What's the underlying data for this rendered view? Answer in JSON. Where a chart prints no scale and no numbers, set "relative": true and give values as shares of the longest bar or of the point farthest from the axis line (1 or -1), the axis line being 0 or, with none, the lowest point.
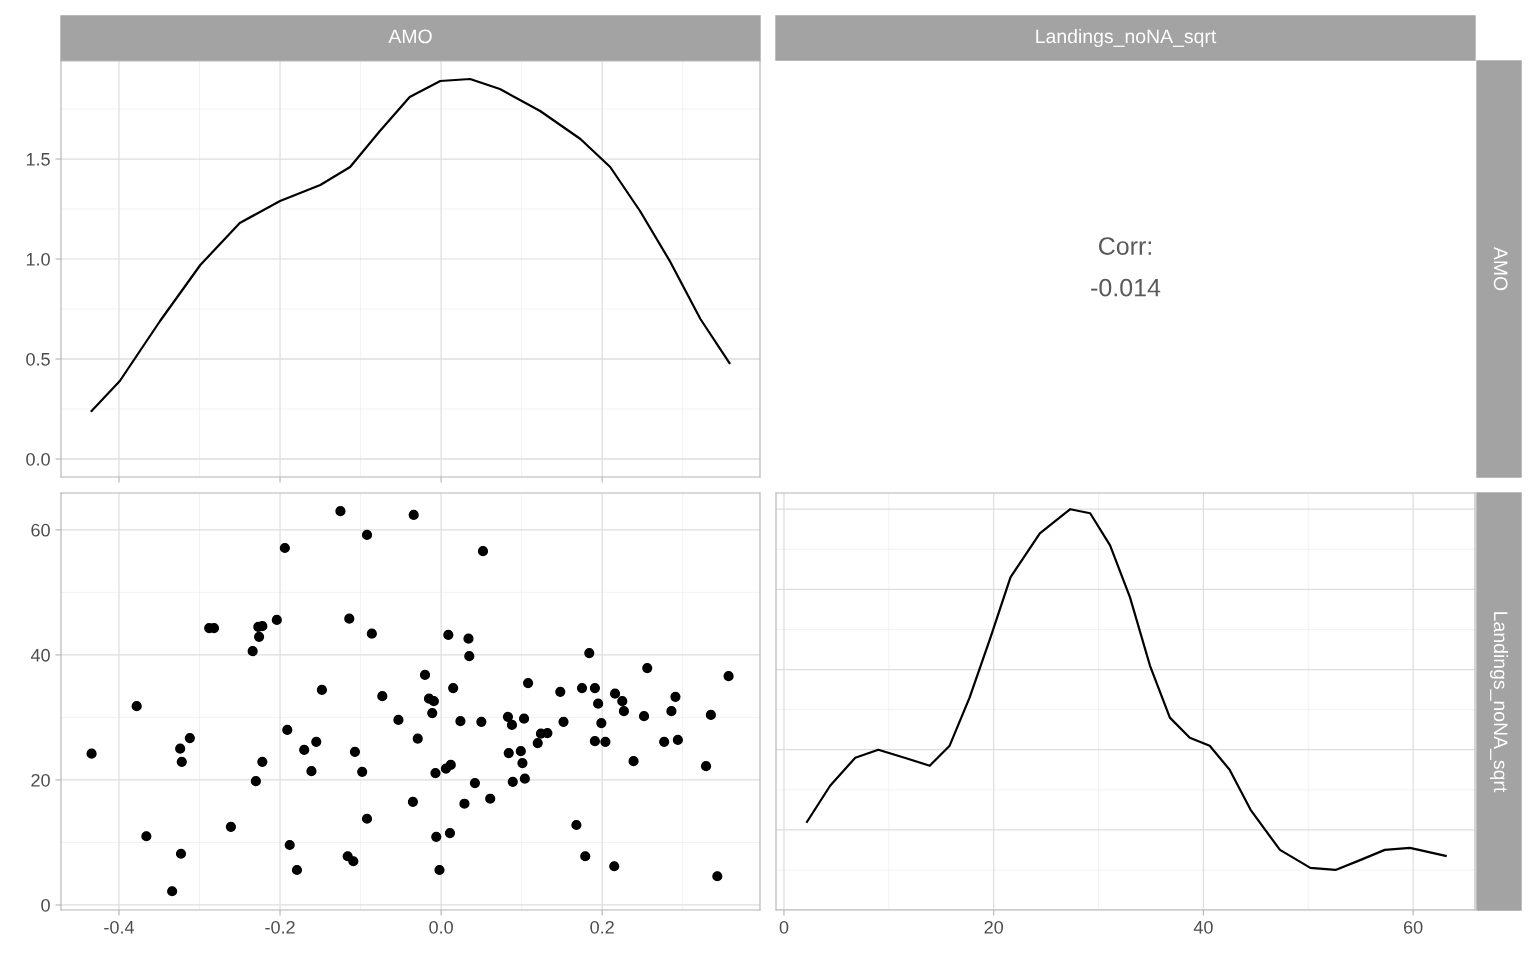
{
  "chart_data": [
    {
      "type": "line",
      "title": "AMO",
      "xlim": [
        -0.472,
        0.396
      ],
      "xticks": [
        -0.4,
        -0.2,
        0,
        0.2
      ],
      "ylim": [
        -0.09,
        1.99
      ],
      "yticks": [
        {
          "value": 0,
          "label": "0.0"
        },
        0.5,
        {
          "value": 1,
          "label": "1.0"
        },
        1.5
      ],
      "tick_labels": "y",
      "grid": true,
      "series": [
        {
          "color": "#000000",
          "x": [
            -0.434,
            -0.399,
            -0.349,
            -0.299,
            -0.25,
            -0.2,
            -0.15,
            -0.113,
            -0.076,
            -0.039,
            -0.001,
            0.036,
            0.073,
            0.123,
            0.173,
            0.21,
            0.247,
            0.284,
            0.322,
            0.358
          ],
          "values": [
            0.24,
            0.39,
            0.69,
            0.97,
            1.18,
            1.29,
            1.37,
            1.46,
            1.64,
            1.81,
            1.89,
            1.9,
            1.85,
            1.74,
            1.6,
            1.46,
            1.24,
            0.99,
            0.7,
            0.48
          ]
        }
      ]
    },
    {
      "type": "other",
      "title": "Landings_noNA_sqrt",
      "y2label": "AMO",
      "annotations": [
        "Corr:",
        "-0.014"
      ]
    },
    {
      "type": "scatter",
      "xlim": [
        -0.472,
        0.396
      ],
      "xticks": [
        -0.4,
        -0.2,
        {
          "value": 0,
          "label": "0.0"
        },
        0.2
      ],
      "ylim": [
        -0.8,
        65.9
      ],
      "yticks": [
        0,
        20,
        40,
        60
      ],
      "grid": true,
      "marker": "circle",
      "series": [
        {
          "color": "#000000",
          "x": [
            -0.434,
            -0.378,
            -0.366,
            -0.334,
            -0.324,
            -0.323,
            -0.322,
            -0.312,
            -0.288,
            -0.282,
            -0.261,
            -0.234,
            -0.23,
            -0.227,
            -0.226,
            -0.222,
            -0.222,
            -0.204,
            -0.194,
            -0.191,
            -0.188,
            -0.179,
            -0.17,
            -0.161,
            -0.155,
            -0.148,
            -0.125,
            -0.116,
            -0.114,
            -0.109,
            -0.107,
            -0.098,
            -0.092,
            -0.092,
            -0.086,
            -0.073,
            -0.053,
            -0.035,
            -0.034,
            -0.029,
            -0.02,
            -0.015,
            -0.011,
            -0.009,
            -0.007,
            -0.006,
            -0.002,
            0.006,
            0.009,
            0.011,
            0.012,
            0.015,
            0.024,
            0.029,
            0.034,
            0.035,
            0.042,
            0.05,
            0.052,
            0.061,
            0.083,
            0.084,
            0.088,
            0.089,
            0.099,
            0.101,
            0.103,
            0.104,
            0.108,
            0.12,
            0.124,
            0.132,
            0.148,
            0.152,
            0.168,
            0.175,
            0.179,
            0.184,
            0.191,
            0.191,
            0.195,
            0.199,
            0.204,
            0.215,
            0.216,
            0.225,
            0.227,
            0.239,
            0.252,
            0.256,
            0.277,
            0.286,
            0.291,
            0.294,
            0.329,
            0.335,
            0.343,
            0.357
          ],
          "values": [
            24.2,
            31.8,
            11.0,
            2.2,
            25.0,
            8.2,
            22.9,
            26.7,
            44.3,
            44.3,
            12.5,
            40.6,
            19.8,
            44.5,
            42.9,
            44.6,
            22.9,
            45.6,
            57.1,
            28.0,
            9.6,
            5.6,
            24.8,
            21.4,
            26.1,
            34.4,
            63.0,
            7.8,
            45.8,
            7.0,
            24.5,
            21.3,
            13.8,
            59.2,
            43.4,
            33.4,
            29.6,
            16.5,
            62.4,
            26.6,
            36.8,
            33.0,
            30.7,
            32.6,
            21.1,
            10.9,
            5.6,
            21.8,
            43.2,
            11.5,
            22.4,
            34.7,
            29.4,
            16.2,
            42.6,
            39.8,
            19.5,
            29.3,
            56.6,
            17.0,
            30.1,
            24.3,
            28.8,
            19.7,
            24.6,
            22.7,
            29.8,
            20.2,
            35.5,
            25.9,
            27.4,
            27.5,
            34.1,
            29.3,
            12.8,
            34.7,
            7.8,
            40.3,
            34.7,
            26.2,
            32.2,
            29.1,
            26.1,
            6.2,
            33.8,
            32.6,
            31.0,
            23.0,
            30.2,
            37.9,
            26.1,
            31.0,
            33.3,
            26.4,
            22.2,
            30.4,
            4.6,
            36.6
          ]
        }
      ]
    },
    {
      "type": "line",
      "y2label": "Landings_noNA_sqrt",
      "relative": true,
      "xlim": [
        -0.76,
        65.9
      ],
      "xticks": [
        0,
        20,
        40,
        60
      ],
      "tick_labels": "x",
      "grid": true,
      "series": [
        {
          "color": "#000000",
          "x": [
            2.2,
            4.4,
            6.8,
            9.0,
            11.5,
            13.9,
            15.8,
            17.7,
            19.7,
            21.6,
            24.4,
            27.3,
            29.2,
            31.1,
            33.0,
            34.9,
            36.8,
            38.7,
            40.6,
            42.5,
            44.5,
            47.3,
            50.2,
            52.6,
            55.0,
            57.3,
            59.7,
            63.1
          ],
          "values": [
            0.22,
            0.31,
            0.38,
            0.4,
            0.38,
            0.36,
            0.41,
            0.53,
            0.68,
            0.83,
            0.94,
            1.0,
            0.99,
            0.91,
            0.78,
            0.61,
            0.48,
            0.43,
            0.41,
            0.35,
            0.25,
            0.15,
            0.105,
            0.1,
            0.125,
            0.15,
            0.155,
            0.135
          ]
        }
      ]
    }
  ]
}
